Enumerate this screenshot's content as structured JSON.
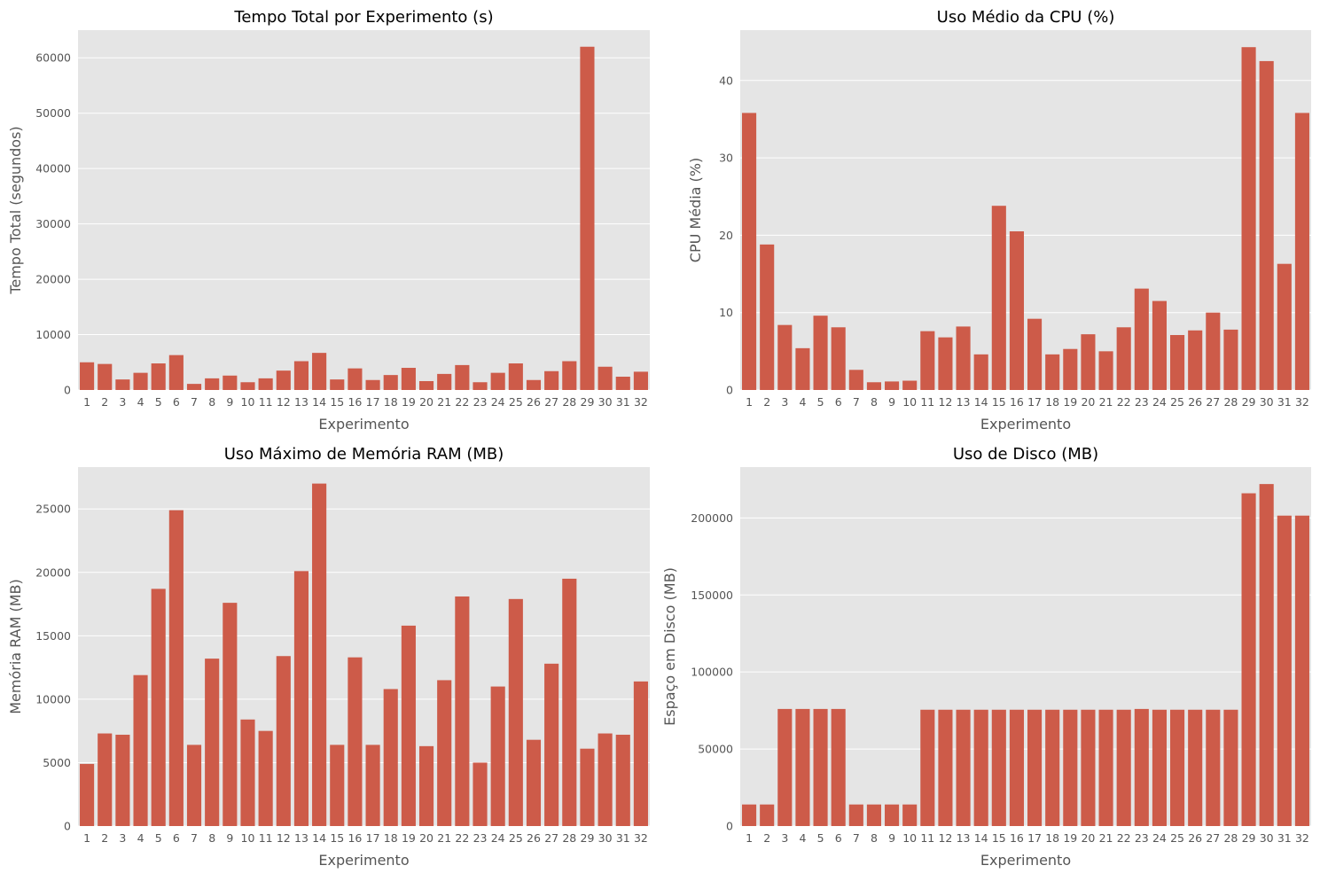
{
  "chart_data": [
    {
      "type": "bar",
      "title": "Tempo Total por Experimento (s)",
      "xlabel": "Experimento",
      "ylabel": "Tempo Total (segundos)",
      "ylim": [
        0,
        65000
      ],
      "yticks": [
        0,
        10000,
        20000,
        30000,
        40000,
        50000,
        60000
      ],
      "categories": [
        "1",
        "2",
        "3",
        "4",
        "5",
        "6",
        "7",
        "8",
        "9",
        "10",
        "11",
        "12",
        "13",
        "14",
        "15",
        "16",
        "17",
        "18",
        "19",
        "20",
        "21",
        "22",
        "23",
        "24",
        "25",
        "26",
        "27",
        "28",
        "29",
        "30",
        "31",
        "32"
      ],
      "values": [
        5000,
        4700,
        1900,
        3100,
        4800,
        6300,
        1100,
        2100,
        2600,
        1400,
        2100,
        3500,
        5200,
        6700,
        1900,
        3900,
        1800,
        2700,
        4000,
        1600,
        2900,
        4500,
        1400,
        3100,
        4800,
        1800,
        3400,
        5200,
        62000,
        4200,
        2400,
        3300
      ],
      "grid": true
    },
    {
      "type": "bar",
      "title": "Uso Médio da CPU (%)",
      "xlabel": "Experimento",
      "ylabel": "CPU Média (%)",
      "ylim": [
        0,
        46.5
      ],
      "yticks": [
        0,
        10,
        20,
        30,
        40
      ],
      "categories": [
        "1",
        "2",
        "3",
        "4",
        "5",
        "6",
        "7",
        "8",
        "9",
        "10",
        "11",
        "12",
        "13",
        "14",
        "15",
        "16",
        "17",
        "18",
        "19",
        "20",
        "21",
        "22",
        "23",
        "24",
        "25",
        "26",
        "27",
        "28",
        "29",
        "30",
        "31",
        "32"
      ],
      "values": [
        35.8,
        18.8,
        8.4,
        5.4,
        9.6,
        8.1,
        2.6,
        1.0,
        1.1,
        1.2,
        7.6,
        6.8,
        8.2,
        4.6,
        23.8,
        20.5,
        9.2,
        4.6,
        5.3,
        7.2,
        5.0,
        8.1,
        13.1,
        11.5,
        7.1,
        7.7,
        10.0,
        7.8,
        44.3,
        42.5,
        16.3,
        35.8
      ],
      "grid": true
    },
    {
      "type": "bar",
      "title": "Uso Máximo de Memória RAM (MB)",
      "xlabel": "Experimento",
      "ylabel": "Memória RAM (MB)",
      "ylim": [
        0,
        28300
      ],
      "yticks": [
        0,
        5000,
        10000,
        15000,
        20000,
        25000
      ],
      "categories": [
        "1",
        "2",
        "3",
        "4",
        "5",
        "6",
        "7",
        "8",
        "9",
        "10",
        "11",
        "12",
        "13",
        "14",
        "15",
        "16",
        "17",
        "18",
        "19",
        "20",
        "21",
        "22",
        "23",
        "24",
        "25",
        "26",
        "27",
        "28",
        "29",
        "30",
        "31",
        "32"
      ],
      "values": [
        4900,
        7300,
        7200,
        11900,
        18700,
        24900,
        6400,
        13200,
        17600,
        8400,
        7500,
        13400,
        20100,
        27000,
        6400,
        13300,
        6400,
        10800,
        15800,
        6300,
        11500,
        18100,
        5000,
        11000,
        17900,
        6800,
        12800,
        19500,
        6100,
        7300,
        7200,
        11400
      ],
      "grid": true
    },
    {
      "type": "bar",
      "title": "Uso de Disco (MB)",
      "xlabel": "Experimento",
      "ylabel": "Espaço em Disco (MB)",
      "ylim": [
        0,
        233000
      ],
      "yticks": [
        0,
        50000,
        100000,
        150000,
        200000
      ],
      "categories": [
        "1",
        "2",
        "3",
        "4",
        "5",
        "6",
        "7",
        "8",
        "9",
        "10",
        "11",
        "12",
        "13",
        "14",
        "15",
        "16",
        "17",
        "18",
        "19",
        "20",
        "21",
        "22",
        "23",
        "24",
        "25",
        "26",
        "27",
        "28",
        "29",
        "30",
        "31",
        "32"
      ],
      "values": [
        14000,
        14000,
        76000,
        76000,
        76000,
        76000,
        14000,
        14000,
        14000,
        14000,
        75500,
        75500,
        75500,
        75500,
        75500,
        75500,
        75500,
        75500,
        75500,
        75500,
        75500,
        75500,
        76000,
        75500,
        75500,
        75500,
        75500,
        75500,
        216000,
        222000,
        201500,
        201500
      ],
      "grid": true
    }
  ],
  "colors": {
    "bar": "#cd5b49",
    "background": "#e5e5e5",
    "grid": "#ffffff"
  }
}
